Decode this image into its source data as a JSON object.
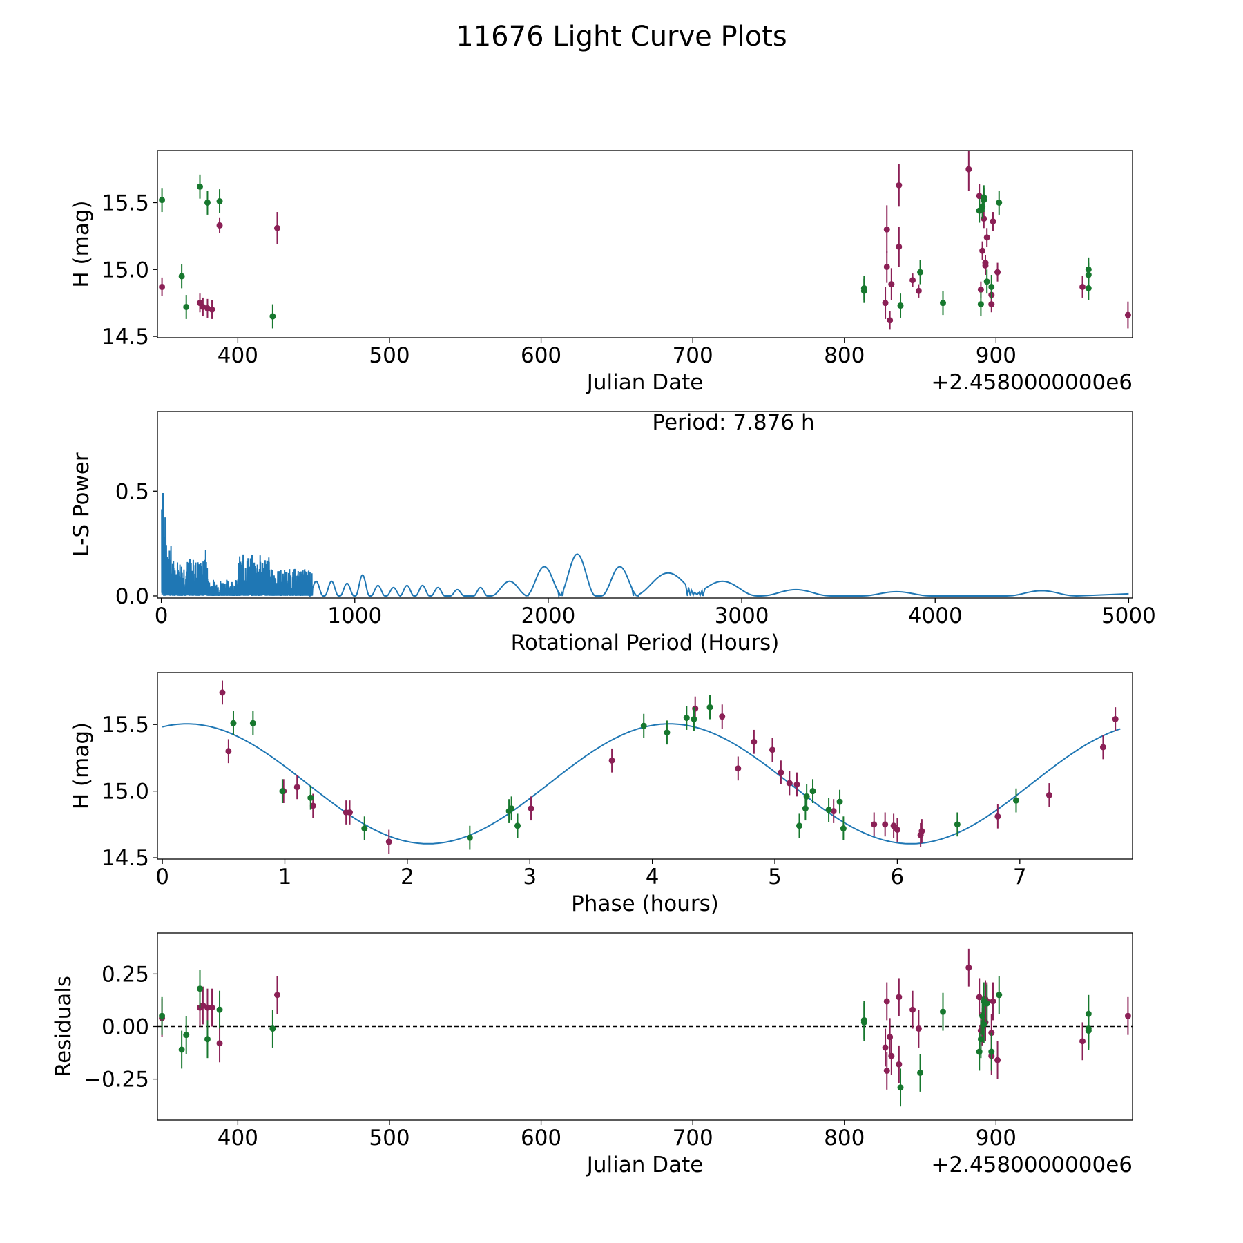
{
  "chart_data": {
    "title": "11676 Light Curve Plots",
    "colors": {
      "magenta": "#8b2056",
      "green": "#17782e",
      "curve": "#1f77b4"
    },
    "panels": [
      {
        "type": "scatter",
        "name": "light-curve",
        "xlabel": "Julian Date",
        "ylabel": "H (mag)",
        "offset_text": "+2.4580000000e6",
        "xlim": [
          347,
          990
        ],
        "ylim": [
          14.49,
          15.89
        ],
        "xticks": [
          400,
          500,
          600,
          700,
          800,
          900
        ],
        "yticks": [
          14.5,
          15.0,
          15.5
        ],
        "ytick_labels": [
          "14.5",
          "15.0",
          "15.5"
        ],
        "series": [
          {
            "name": "magenta",
            "x": [
              350,
              375,
              377,
              380,
              383,
              388,
              426,
              827,
              828,
              828,
              830,
              831,
              836,
              836,
              845,
              849,
              882,
              889,
              890,
              891,
              892,
              893,
              893,
              894,
              897,
              897,
              898,
              901,
              957,
              987
            ],
            "y": [
              14.87,
              14.75,
              14.72,
              14.71,
              14.7,
              15.33,
              15.31,
              14.75,
              15.3,
              15.02,
              14.62,
              14.89,
              15.63,
              15.17,
              14.92,
              14.84,
              15.75,
              15.55,
              14.85,
              15.14,
              15.38,
              15.05,
              15.03,
              15.24,
              14.81,
              14.74,
              15.36,
              14.98,
              14.87,
              14.66
            ],
            "err": [
              0.07,
              0.07,
              0.07,
              0.07,
              0.07,
              0.06,
              0.12,
              0.12,
              0.18,
              0.12,
              0.07,
              0.12,
              0.16,
              0.15,
              0.05,
              0.05,
              0.16,
              0.09,
              0.06,
              0.07,
              0.07,
              0.06,
              0.07,
              0.07,
              0.07,
              0.06,
              0.07,
              0.07,
              0.08,
              0.1
            ]
          },
          {
            "name": "green",
            "x": [
              350,
              363,
              366,
              375,
              380,
              388,
              423,
              813,
              813,
              837,
              850,
              865,
              889,
              890,
              891,
              892,
              892,
              894,
              897,
              902,
              961,
              961,
              961
            ],
            "y": [
              15.52,
              14.95,
              14.72,
              15.62,
              15.5,
              15.51,
              14.65,
              14.84,
              14.86,
              14.73,
              14.98,
              14.75,
              15.44,
              14.74,
              15.47,
              15.54,
              15.52,
              14.91,
              14.87,
              15.5,
              14.96,
              15.0,
              14.86
            ]
          }
        ]
      },
      {
        "type": "line",
        "name": "periodogram",
        "xlabel": "Rotational Period (Hours)",
        "ylabel": "L-S Power",
        "annotation": "Period: 7.876 h",
        "xlim": [
          -20,
          5020
        ],
        "ylim": [
          -0.01,
          0.88
        ],
        "xticks": [
          0,
          1000,
          2000,
          3000,
          4000,
          5000
        ],
        "yticks": [
          0.0,
          0.5
        ],
        "ytick_labels": [
          "0.0",
          "0.5"
        ],
        "lobes": [
          [
            800,
            0.07
          ],
          [
            880,
            0.07
          ],
          [
            960,
            0.06
          ],
          [
            1040,
            0.1
          ],
          [
            1120,
            0.05
          ],
          [
            1200,
            0.04
          ],
          [
            1270,
            0.05
          ],
          [
            1350,
            0.05
          ],
          [
            1430,
            0.04
          ],
          [
            1530,
            0.03
          ],
          [
            1650,
            0.04
          ],
          [
            1800,
            0.07
          ],
          [
            1980,
            0.14
          ],
          [
            2150,
            0.2
          ],
          [
            2370,
            0.14
          ],
          [
            2620,
            0.11
          ],
          [
            2900,
            0.07
          ],
          [
            3280,
            0.03
          ],
          [
            3800,
            0.02
          ],
          [
            4550,
            0.025
          ]
        ]
      },
      {
        "type": "scatter",
        "name": "phased-curve",
        "xlabel": "Phase (hours)",
        "ylabel": "H (mag)",
        "xlim": [
          -0.04,
          7.92
        ],
        "ylim": [
          14.49,
          15.89
        ],
        "xticks": [
          0,
          1,
          2,
          3,
          4,
          5,
          6,
          7
        ],
        "yticks": [
          14.5,
          15.0,
          15.5
        ],
        "ytick_labels": [
          "14.5",
          "15.0",
          "15.5"
        ],
        "fit": {
          "period": 3.94,
          "phase_peak": 0.2,
          "mean": 15.055,
          "amplitude": 0.45
        },
        "series": [
          {
            "name": "magenta",
            "x": [
              0.49,
              0.54,
              0.99,
              1.1,
              1.23,
              1.5,
              1.53,
              1.85,
              3.01,
              3.67,
              4.35,
              4.57,
              4.7,
              4.83,
              4.98,
              5.05,
              5.12,
              5.18,
              5.48,
              5.81,
              5.9,
              5.97,
              6.0,
              6.19,
              6.2,
              6.82,
              7.24,
              7.68,
              7.78
            ],
            "y": [
              15.74,
              15.3,
              15.0,
              15.03,
              14.89,
              14.84,
              14.84,
              14.62,
              14.87,
              15.23,
              15.62,
              15.56,
              15.17,
              15.37,
              15.31,
              15.14,
              15.06,
              15.05,
              14.85,
              14.75,
              14.75,
              14.74,
              14.71,
              14.67,
              14.7,
              14.81,
              14.97,
              15.33,
              15.54
            ]
          },
          {
            "name": "green",
            "x": [
              0.58,
              0.74,
              0.98,
              1.21,
              1.65,
              2.51,
              2.83,
              2.85,
              2.9,
              3.93,
              4.12,
              4.28,
              4.34,
              4.47,
              5.2,
              5.25,
              5.26,
              5.31,
              5.44,
              5.53,
              5.56,
              6.49,
              6.97
            ],
            "y": [
              15.51,
              15.51,
              15.0,
              14.95,
              14.72,
              14.65,
              14.85,
              14.87,
              14.74,
              15.49,
              15.44,
              15.55,
              15.54,
              15.63,
              14.74,
              14.87,
              14.96,
              15.0,
              14.86,
              14.92,
              14.72,
              14.75,
              14.93
            ]
          }
        ]
      },
      {
        "type": "scatter",
        "name": "residuals",
        "xlabel": "Julian Date",
        "ylabel": "Residuals",
        "offset_text": "+2.4580000000e6",
        "xlim": [
          347,
          990
        ],
        "ylim": [
          -0.445,
          0.445
        ],
        "xticks": [
          400,
          500,
          600,
          700,
          800,
          900
        ],
        "yticks": [
          -0.25,
          0.0,
          0.25
        ],
        "ytick_labels": [
          "−0.25",
          "0.00",
          "0.25"
        ],
        "zero_line": true,
        "series": [
          {
            "name": "magenta",
            "x": [
              350,
              375,
              377,
              380,
              383,
              388,
              426,
              827,
              828,
              828,
              830,
              831,
              836,
              836,
              845,
              849,
              882,
              889,
              890,
              891,
              892,
              893,
              893,
              894,
              897,
              897,
              898,
              901,
              957,
              987
            ],
            "y": [
              0.04,
              0.09,
              0.1,
              0.09,
              0.09,
              -0.08,
              0.15,
              -0.1,
              0.12,
              -0.21,
              -0.05,
              -0.14,
              0.14,
              -0.18,
              0.08,
              -0.01,
              0.28,
              0.14,
              -0.02,
              0.0,
              0.02,
              0.02,
              0.13,
              0.12,
              -0.14,
              -0.03,
              0.12,
              -0.16,
              -0.07,
              0.05
            ]
          },
          {
            "name": "green",
            "x": [
              350,
              363,
              366,
              375,
              380,
              388,
              423,
              813,
              813,
              837,
              850,
              865,
              889,
              890,
              891,
              892,
              892,
              894,
              897,
              902,
              961,
              961,
              961
            ],
            "y": [
              0.05,
              -0.11,
              -0.04,
              0.18,
              -0.06,
              0.08,
              -0.01,
              0.03,
              0.02,
              -0.29,
              -0.22,
              0.07,
              -0.12,
              -0.06,
              0.05,
              0.12,
              0.01,
              0.11,
              -0.12,
              0.15,
              0.06,
              -0.01,
              -0.02
            ]
          }
        ]
      }
    ]
  }
}
